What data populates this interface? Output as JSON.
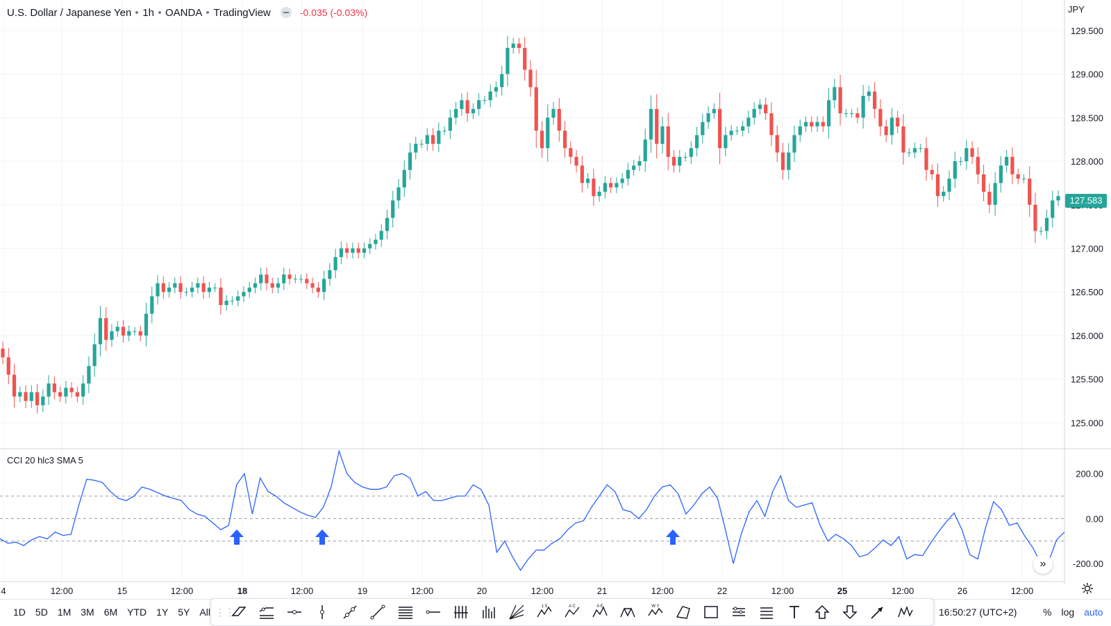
{
  "header": {
    "symbol": "U.S. Dollar / Japanese Yen",
    "interval": "1h",
    "exchange": "OANDA",
    "source": "TradingView",
    "change": "-0.035 (-0.03%)"
  },
  "currency_label": "JPY",
  "indicator_label": "CCI 20 hlc3 SMA 5",
  "last_price_label": "127.583",
  "colors": {
    "up": "#26a69a",
    "down": "#ef5350",
    "cci": "#2962ff",
    "grid": "#f0f3fa",
    "arrow": "#2962ff"
  },
  "ranges": [
    "1D",
    "5D",
    "1M",
    "3M",
    "6M",
    "YTD",
    "1Y",
    "5Y",
    "All"
  ],
  "tools": [
    "parallel-channel-icon",
    "regression-trend-icon",
    "horizontal-ray-icon",
    "vertical-line-icon",
    "trend-angle-icon",
    "trend-line-icon",
    "fib-retracement-icon",
    "horizontal-line-icon",
    "fib-channel-icon",
    "pitchfork-icon",
    "gann-fan-icon",
    "elliott-wave-icon",
    "abcd-pattern-icon",
    "xabcd-pattern-icon",
    "head-shoulders-icon",
    "wxy-pattern-icon",
    "triangle-pattern-icon",
    "rectangle-icon",
    "date-range-icon",
    "price-range-icon",
    "text-icon",
    "arrow-up-icon",
    "arrow-down-icon",
    "arrow-marker-icon",
    "cypher-pattern-icon"
  ],
  "tool_labels": {
    "elliott-wave-icon": "1 5",
    "abcd-pattern-icon": "A C",
    "xabcd-pattern-icon": "A E",
    "wxy-pattern-icon": "W Y"
  },
  "clock": "16:50:27 (UTC+2)",
  "scale_opts": [
    "%",
    "log",
    "auto"
  ],
  "chart_data": [
    {
      "type": "candlestick",
      "title": "U.S. Dollar / Japanese Yen · 1h · OANDA · TradingView",
      "x_ticks": [
        "4",
        "12:00",
        "15",
        "12:00",
        "18",
        "12:00",
        "19",
        "12:00",
        "20",
        "12:00",
        "21",
        "12:00",
        "22",
        "12:00",
        "25",
        "12:00",
        "26",
        "12:00"
      ],
      "y_ticks": [
        125.0,
        125.5,
        126.0,
        126.5,
        127.0,
        127.5,
        128.0,
        128.5,
        129.0,
        129.5
      ],
      "ylim": [
        124.7,
        129.85
      ],
      "close_series": [
        125.75,
        125.55,
        125.3,
        125.35,
        125.25,
        125.35,
        125.2,
        125.3,
        125.45,
        125.35,
        125.3,
        125.4,
        125.35,
        125.3,
        125.45,
        125.65,
        125.9,
        126.2,
        125.95,
        126.05,
        126.1,
        126.0,
        126.05,
        126.05,
        126.0,
        126.25,
        126.45,
        126.6,
        126.5,
        126.55,
        126.6,
        126.5,
        126.5,
        126.55,
        126.6,
        126.5,
        126.55,
        126.55,
        126.35,
        126.4,
        126.4,
        126.45,
        126.5,
        126.55,
        126.6,
        126.7,
        126.6,
        126.55,
        126.6,
        126.7,
        126.65,
        126.65,
        126.65,
        126.6,
        126.55,
        126.5,
        126.65,
        126.75,
        126.9,
        127.0,
        126.95,
        127.0,
        126.95,
        127.0,
        127.05,
        127.1,
        127.2,
        127.35,
        127.55,
        127.7,
        127.9,
        128.1,
        128.2,
        128.2,
        128.3,
        128.2,
        128.35,
        128.35,
        128.5,
        128.6,
        128.7,
        128.55,
        128.6,
        128.7,
        128.7,
        128.8,
        128.85,
        129.0,
        129.3,
        129.35,
        129.3,
        129.05,
        128.85,
        128.35,
        128.15,
        128.5,
        128.6,
        128.35,
        128.15,
        128.05,
        127.95,
        127.75,
        127.8,
        127.6,
        127.65,
        127.75,
        127.7,
        127.75,
        127.8,
        127.9,
        127.95,
        128.0,
        128.25,
        128.6,
        128.2,
        128.4,
        128.05,
        127.95,
        128.05,
        128.05,
        128.15,
        128.3,
        128.45,
        128.55,
        128.6,
        128.15,
        128.3,
        128.35,
        128.35,
        128.4,
        128.5,
        128.6,
        128.65,
        128.55,
        128.3,
        128.1,
        127.9,
        128.1,
        128.3,
        128.4,
        128.45,
        128.4,
        128.45,
        128.4,
        128.7,
        128.85,
        128.55,
        128.55,
        128.55,
        128.5,
        128.75,
        128.8,
        128.6,
        128.4,
        128.3,
        128.5,
        128.4,
        128.1,
        128.1,
        128.15,
        128.15,
        127.9,
        127.85,
        127.6,
        127.65,
        127.8,
        128.0,
        128.0,
        128.15,
        128.05,
        127.85,
        127.65,
        127.5,
        127.75,
        127.95,
        128.05,
        127.85,
        127.8,
        127.8,
        127.5,
        127.2,
        127.2,
        127.35,
        127.55,
        127.6
      ]
    },
    {
      "type": "line",
      "title": "CCI 20 hlc3 SMA 5",
      "y_ticks": [
        200.0,
        0.0,
        -200.0
      ],
      "ylim": [
        -280,
        310
      ],
      "reference_lines": [
        100,
        0,
        -100
      ],
      "series": [
        {
          "values": [
            -90,
            -110,
            -105,
            -120,
            -95,
            -80,
            -90,
            -60,
            -75,
            -70,
            60,
            175,
            170,
            160,
            120,
            90,
            80,
            100,
            140,
            130,
            115,
            100,
            90,
            80,
            40,
            20,
            10,
            -20,
            -50,
            -30,
            150,
            200,
            20,
            180,
            120,
            100,
            70,
            50,
            30,
            15,
            5,
            50,
            140,
            300,
            200,
            160,
            140,
            130,
            130,
            140,
            190,
            200,
            180,
            100,
            120,
            80,
            80,
            90,
            100,
            100,
            150,
            130,
            60,
            -150,
            -100,
            -170,
            -230,
            -180,
            -140,
            -140,
            -110,
            -90,
            -50,
            -20,
            -10,
            50,
            100,
            150,
            120,
            40,
            30,
            0,
            40,
            100,
            140,
            150,
            110,
            20,
            60,
            110,
            140,
            90,
            -50,
            -200,
            -70,
            30,
            80,
            10,
            120,
            190,
            80,
            50,
            60,
            70,
            -30,
            -100,
            -70,
            -90,
            -120,
            -170,
            -160,
            -130,
            -95,
            -120,
            -80,
            -180,
            -160,
            -165,
            -110,
            -60,
            -15,
            25,
            -50,
            -160,
            -180,
            -40,
            75,
            40,
            -30,
            -20,
            -80,
            -130,
            -200,
            -190,
            -95,
            -60
          ]
        }
      ],
      "markers": [
        {
          "type": "up-arrow",
          "x_tick": "18",
          "at": "≈ before 18"
        },
        {
          "type": "up-arrow",
          "x_tick": "12:00",
          "at": "18 12:00"
        },
        {
          "type": "up-arrow",
          "x_tick": "12:00",
          "at": "21 12:00"
        }
      ]
    }
  ]
}
